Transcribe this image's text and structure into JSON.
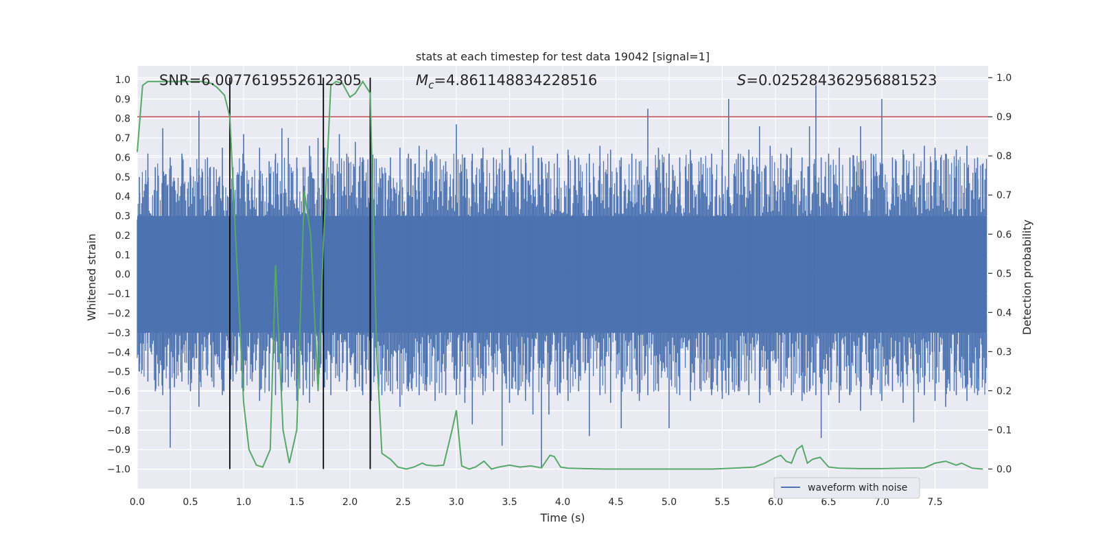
{
  "chart_data": {
    "type": "line",
    "title": "stats at each timestep for test data 19042 [signal=1]",
    "xlabel": "Time (s)",
    "ylabel": "Whitened strain",
    "ylabel_right": "Detection probability",
    "xlim": [
      0,
      8
    ],
    "ylim": [
      -1.1,
      1.07
    ],
    "ylim_right": [
      -0.05,
      1.03
    ],
    "x_ticks": [
      0.0,
      0.5,
      1.0,
      1.5,
      2.0,
      2.5,
      3.0,
      3.5,
      4.0,
      4.5,
      5.0,
      5.5,
      6.0,
      6.5,
      7.0,
      7.5
    ],
    "x_tick_labels": [
      "0.0",
      "0.5",
      "1.0",
      "1.5",
      "2.0",
      "2.5",
      "3.0",
      "3.5",
      "4.0",
      "4.5",
      "5.0",
      "5.5",
      "6.0",
      "6.5",
      "7.0",
      "7.5"
    ],
    "y_ticks": [
      -1.0,
      -0.9,
      -0.8,
      -0.7,
      -0.6,
      -0.5,
      -0.4,
      -0.3,
      -0.2,
      -0.1,
      0.0,
      0.1,
      0.2,
      0.3,
      0.4,
      0.5,
      0.6,
      0.7,
      0.8,
      0.9,
      1.0
    ],
    "y_tick_labels": [
      "−1.0",
      "−0.9",
      "−0.8",
      "−0.7",
      "−0.6",
      "−0.5",
      "−0.4",
      "−0.3",
      "−0.2",
      "−0.1",
      "0.0",
      "0.1",
      "0.2",
      "0.3",
      "0.4",
      "0.5",
      "0.6",
      "0.7",
      "0.8",
      "0.9",
      "1.0"
    ],
    "y_right_ticks": [
      0.0,
      0.1,
      0.2,
      0.3,
      0.4,
      0.5,
      0.6,
      0.7,
      0.8,
      0.9,
      1.0
    ],
    "y_right_tick_labels": [
      "0.0",
      "0.1",
      "0.2",
      "0.3",
      "0.4",
      "0.5",
      "0.6",
      "0.7",
      "0.8",
      "0.9",
      "1.0"
    ],
    "grid": true,
    "legend_position": "lower-right",
    "annotations": {
      "snr": "SNR=6.0077619552612305",
      "mc": "=4.861148834228516",
      "s": "=0.025284362956881523"
    },
    "threshold": {
      "value": 0.9,
      "axis": "right"
    },
    "vertical_markers": [
      0.87,
      1.75,
      2.19
    ],
    "series": [
      {
        "name": "waveform with noise",
        "axis": "left",
        "note_envelope": "dense noise trace, shown via representative peak excursions",
        "x": [
          0.02,
          0.1,
          0.17,
          0.24,
          0.31,
          0.35,
          0.42,
          0.5,
          0.58,
          0.66,
          0.72,
          0.8,
          0.9,
          1.0,
          1.08,
          1.15,
          1.24,
          1.3,
          1.36,
          1.42,
          1.5,
          1.56,
          1.62,
          1.7,
          1.76,
          1.82,
          1.9,
          1.97,
          2.05,
          2.12,
          2.2,
          2.3,
          2.38,
          2.47,
          2.55,
          2.65,
          2.72,
          2.8,
          2.9,
          3.0,
          3.08,
          3.15,
          3.25,
          3.35,
          3.43,
          3.5,
          3.58,
          3.65,
          3.72,
          3.8,
          3.87,
          3.95,
          4.05,
          4.15,
          4.25,
          4.35,
          4.45,
          4.55,
          4.65,
          4.72,
          4.8,
          4.9,
          5.0,
          5.1,
          5.2,
          5.3,
          5.4,
          5.5,
          5.56,
          5.65,
          5.75,
          5.85,
          5.95,
          6.05,
          6.15,
          6.25,
          6.32,
          6.38,
          6.43,
          6.5,
          6.6,
          6.7,
          6.8,
          6.9,
          7.0,
          7.1,
          7.2,
          7.3,
          7.4,
          7.5,
          7.6,
          7.7,
          7.8,
          7.9
        ],
        "upper": [
          0.5,
          0.62,
          0.55,
          0.75,
          0.6,
          0.48,
          0.62,
          0.55,
          0.84,
          0.6,
          0.55,
          0.65,
          0.55,
          0.72,
          0.5,
          0.65,
          0.58,
          0.62,
          0.75,
          0.7,
          0.6,
          0.55,
          0.66,
          0.7,
          0.65,
          0.6,
          0.72,
          0.62,
          0.68,
          0.6,
          0.7,
          0.55,
          0.6,
          0.65,
          0.62,
          0.66,
          0.64,
          0.62,
          0.58,
          0.77,
          0.6,
          0.62,
          0.65,
          0.6,
          0.64,
          0.65,
          0.6,
          0.62,
          0.66,
          0.6,
          0.58,
          0.62,
          0.64,
          0.6,
          0.62,
          0.66,
          0.64,
          0.6,
          0.62,
          0.58,
          0.85,
          0.65,
          0.62,
          0.6,
          0.64,
          0.6,
          0.62,
          0.64,
          0.9,
          0.62,
          0.64,
          0.76,
          0.66,
          0.62,
          0.65,
          0.6,
          0.76,
          0.97,
          0.6,
          0.62,
          0.65,
          0.6,
          0.76,
          0.62,
          0.9,
          0.6,
          0.64,
          0.62,
          0.66,
          0.65,
          0.62,
          0.64,
          0.66,
          0.6
        ],
        "lower": [
          -0.5,
          -0.55,
          -0.6,
          -0.62,
          -0.89,
          -0.58,
          -0.55,
          -0.6,
          -0.68,
          -0.52,
          -0.58,
          -0.62,
          -0.55,
          -0.6,
          -0.55,
          -0.65,
          -0.6,
          -0.62,
          -0.6,
          -0.58,
          -0.65,
          -0.62,
          -0.66,
          -0.6,
          -0.58,
          -0.62,
          -0.55,
          -0.6,
          -0.58,
          -0.62,
          -0.65,
          -0.62,
          -0.6,
          -0.68,
          -0.6,
          -0.62,
          -0.6,
          -0.65,
          -0.62,
          -0.62,
          -0.66,
          -0.77,
          -0.62,
          -0.6,
          -0.88,
          -0.66,
          -0.62,
          -0.65,
          -0.72,
          -0.99,
          -0.72,
          -0.62,
          -0.65,
          -0.6,
          -0.83,
          -0.62,
          -0.66,
          -0.79,
          -0.6,
          -0.65,
          -0.62,
          -0.6,
          -0.79,
          -0.62,
          -0.65,
          -0.6,
          -0.62,
          -0.64,
          -0.62,
          -0.6,
          -0.62,
          -0.66,
          -0.62,
          -0.6,
          -0.62,
          -0.65,
          -0.6,
          -0.62,
          -0.84,
          -0.62,
          -0.66,
          -0.62,
          -0.7,
          -0.62,
          -0.65,
          -0.6,
          -0.66,
          -0.76,
          -0.62,
          -0.65,
          -0.68,
          -0.62,
          -0.65,
          -0.62
        ],
        "color": "#4c72b0"
      },
      {
        "name": "",
        "axis": "right",
        "x": [
          0.0,
          0.05,
          0.1,
          0.2,
          0.35,
          0.5,
          0.6,
          0.7,
          0.75,
          0.82,
          0.87,
          0.95,
          1.0,
          1.05,
          1.12,
          1.18,
          1.25,
          1.3,
          1.37,
          1.43,
          1.5,
          1.57,
          1.63,
          1.7,
          1.75,
          1.82,
          1.87,
          1.93,
          2.0,
          2.05,
          2.12,
          2.19,
          2.25,
          2.3,
          2.38,
          2.45,
          2.53,
          2.6,
          2.68,
          2.72,
          2.8,
          2.88,
          2.96,
          3.0,
          3.05,
          3.12,
          3.18,
          3.26,
          3.33,
          3.4,
          3.5,
          3.6,
          3.7,
          3.8,
          3.88,
          3.92,
          3.98,
          4.05,
          4.2,
          4.4,
          4.6,
          4.8,
          5.0,
          5.2,
          5.4,
          5.6,
          5.8,
          5.9,
          6.0,
          6.05,
          6.1,
          6.15,
          6.2,
          6.25,
          6.3,
          6.35,
          6.42,
          6.5,
          6.6,
          6.8,
          7.0,
          7.2,
          7.4,
          7.5,
          7.6,
          7.7,
          7.75,
          7.85,
          7.95
        ],
        "values": [
          0.81,
          0.98,
          0.99,
          0.99,
          0.99,
          0.99,
          0.99,
          0.985,
          0.975,
          0.955,
          0.9,
          0.45,
          0.17,
          0.05,
          0.01,
          0.005,
          0.05,
          0.52,
          0.1,
          0.015,
          0.1,
          0.71,
          0.6,
          0.2,
          0.58,
          0.98,
          0.99,
          0.985,
          0.95,
          0.96,
          0.99,
          0.96,
          0.3,
          0.04,
          0.025,
          0.005,
          0.0,
          0.005,
          0.015,
          0.01,
          0.008,
          0.01,
          0.1,
          0.15,
          0.008,
          0.0,
          0.005,
          0.02,
          0.0,
          0.005,
          0.01,
          0.005,
          0.008,
          0.003,
          0.035,
          0.032,
          0.005,
          0.002,
          0.001,
          0.0,
          0.0,
          0.0,
          0.0,
          0.0,
          0.0,
          0.002,
          0.005,
          0.015,
          0.03,
          0.035,
          0.02,
          0.015,
          0.05,
          0.06,
          0.015,
          0.025,
          0.03,
          0.005,
          0.002,
          0.001,
          0.001,
          0.002,
          0.003,
          0.015,
          0.02,
          0.01,
          0.015,
          0.002,
          0.0
        ],
        "color": "#55a868"
      }
    ],
    "threshold_color": "#c44e52",
    "marker_color": "#000000",
    "background_color": "#eaeaf2"
  }
}
